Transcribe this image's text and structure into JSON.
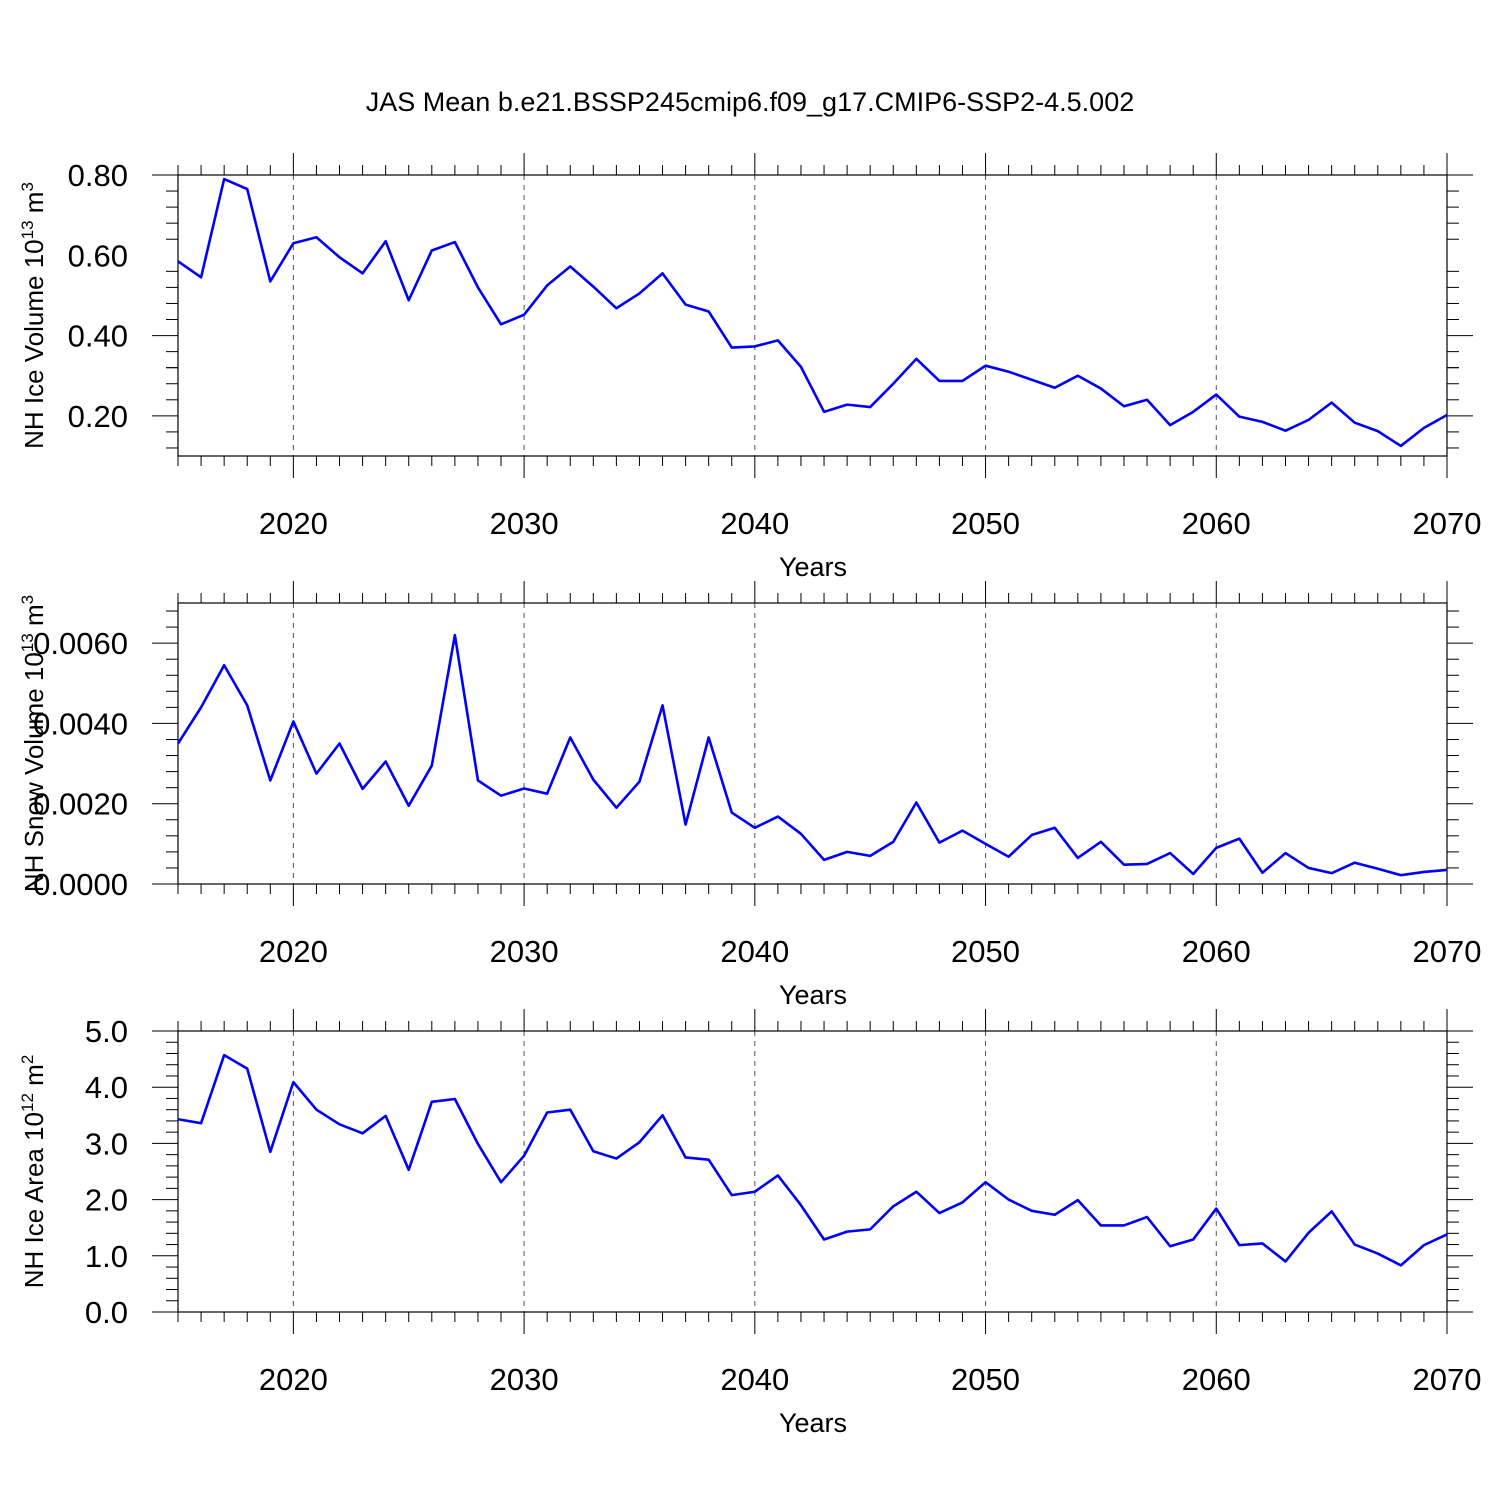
{
  "title": "JAS Mean b.e21.BSSP245cmip6.f09_g17.CMIP6-SSP2-4.5.002",
  "line_color": "#0000ff",
  "chart_data": [
    {
      "type": "line",
      "ylabel": "NH Ice Volume 10",
      "ylabel_sup": "13",
      "ylabel_unit": " m",
      "ylabel_unit_sup": "3",
      "xlabel": "Years",
      "xlim": [
        2015,
        2070
      ],
      "ylim": [
        0.1,
        0.8
      ],
      "x_ticks": [
        2020,
        2030,
        2040,
        2050,
        2060,
        2070
      ],
      "x_tick_labels": [
        "2020",
        "2030",
        "2040",
        "2050",
        "2060",
        "2070"
      ],
      "y_ticks": [
        0.2,
        0.4,
        0.6,
        0.8
      ],
      "y_tick_labels": [
        "0.20",
        "0.40",
        "0.60",
        "0.80"
      ],
      "grid": "vertical dashed at major x ticks",
      "series": [
        {
          "x": [
            2015,
            2016,
            2017,
            2018,
            2019,
            2020,
            2021,
            2022,
            2023,
            2024,
            2025,
            2026,
            2027,
            2028,
            2029,
            2030,
            2031,
            2032,
            2033,
            2034,
            2035,
            2036,
            2037,
            2038,
            2039,
            2040,
            2041,
            2042,
            2043,
            2044,
            2045,
            2046,
            2047,
            2048,
            2049,
            2050,
            2051,
            2052,
            2053,
            2054,
            2055,
            2056,
            2057,
            2058,
            2059,
            2060,
            2061,
            2062,
            2063,
            2064,
            2065,
            2066,
            2067,
            2068,
            2069,
            2070
          ],
          "values": [
            0.585,
            0.545,
            0.79,
            0.765,
            0.535,
            0.63,
            0.645,
            0.595,
            0.555,
            0.635,
            0.488,
            0.612,
            0.633,
            0.52,
            0.428,
            0.452,
            0.525,
            0.572,
            0.522,
            0.468,
            0.505,
            0.555,
            0.477,
            0.46,
            0.37,
            0.373,
            0.388,
            0.322,
            0.21,
            0.228,
            0.222,
            0.28,
            0.342,
            0.287,
            0.287,
            0.325,
            0.31,
            0.29,
            0.27,
            0.3,
            0.268,
            0.224,
            0.24,
            0.177,
            0.21,
            0.253,
            0.198,
            0.185,
            0.163,
            0.19,
            0.233,
            0.183,
            0.162,
            0.125,
            0.17,
            0.202
          ]
        }
      ]
    },
    {
      "type": "line",
      "ylabel": "NH Snow Volume 10",
      "ylabel_sup": "13",
      "ylabel_unit": " m",
      "ylabel_unit_sup": "3",
      "xlabel": "Years",
      "xlim": [
        2015,
        2070
      ],
      "ylim": [
        0.0,
        0.007
      ],
      "x_ticks": [
        2020,
        2030,
        2040,
        2050,
        2060,
        2070
      ],
      "x_tick_labels": [
        "2020",
        "2030",
        "2040",
        "2050",
        "2060",
        "2070"
      ],
      "y_ticks": [
        0.0,
        0.002,
        0.004,
        0.006
      ],
      "y_tick_labels": [
        "0.0000",
        "0.0020",
        "0.0040",
        "0.0060"
      ],
      "grid": "vertical dashed at major x ticks",
      "series": [
        {
          "x": [
            2015,
            2016,
            2017,
            2018,
            2019,
            2020,
            2021,
            2022,
            2023,
            2024,
            2025,
            2026,
            2027,
            2028,
            2029,
            2030,
            2031,
            2032,
            2033,
            2034,
            2035,
            2036,
            2037,
            2038,
            2039,
            2040,
            2041,
            2042,
            2043,
            2044,
            2045,
            2046,
            2047,
            2048,
            2049,
            2050,
            2051,
            2052,
            2053,
            2054,
            2055,
            2056,
            2057,
            2058,
            2059,
            2060,
            2061,
            2062,
            2063,
            2064,
            2065,
            2066,
            2067,
            2068,
            2069,
            2070
          ],
          "values": [
            0.0035,
            0.0044,
            0.00545,
            0.00445,
            0.00258,
            0.00405,
            0.00275,
            0.0035,
            0.00237,
            0.00305,
            0.00195,
            0.00295,
            0.0062,
            0.00258,
            0.0022,
            0.00238,
            0.00225,
            0.00365,
            0.0026,
            0.0019,
            0.00255,
            0.00445,
            0.00148,
            0.00365,
            0.00178,
            0.0014,
            0.00168,
            0.00125,
            0.0006,
            0.0008,
            0.0007,
            0.00105,
            0.00203,
            0.00103,
            0.00133,
            0.001,
            0.00068,
            0.00122,
            0.0014,
            0.00065,
            0.00105,
            0.00048,
            0.0005,
            0.00077,
            0.00025,
            0.0009,
            0.00113,
            0.00028,
            0.00077,
            0.0004,
            0.00027,
            0.00053,
            0.00038,
            0.00022,
            0.0003,
            0.00035
          ]
        }
      ]
    },
    {
      "type": "line",
      "ylabel": "NH Ice Area 10",
      "ylabel_sup": "12",
      "ylabel_unit": " m",
      "ylabel_unit_sup": "2",
      "xlabel": "Years",
      "xlim": [
        2015,
        2070
      ],
      "ylim": [
        0.0,
        5.0
      ],
      "x_ticks": [
        2020,
        2030,
        2040,
        2050,
        2060,
        2070
      ],
      "x_tick_labels": [
        "2020",
        "2030",
        "2040",
        "2050",
        "2060",
        "2070"
      ],
      "y_ticks": [
        0.0,
        1.0,
        2.0,
        3.0,
        4.0,
        5.0
      ],
      "y_tick_labels": [
        "0.0",
        "1.0",
        "2.0",
        "3.0",
        "4.0",
        "5.0"
      ],
      "grid": "vertical dashed at major x ticks",
      "series": [
        {
          "x": [
            2015,
            2016,
            2017,
            2018,
            2019,
            2020,
            2021,
            2022,
            2023,
            2024,
            2025,
            2026,
            2027,
            2028,
            2029,
            2030,
            2031,
            2032,
            2033,
            2034,
            2035,
            2036,
            2037,
            2038,
            2039,
            2040,
            2041,
            2042,
            2043,
            2044,
            2045,
            2046,
            2047,
            2048,
            2049,
            2050,
            2051,
            2052,
            2053,
            2054,
            2055,
            2056,
            2057,
            2058,
            2059,
            2060,
            2061,
            2062,
            2063,
            2064,
            2065,
            2066,
            2067,
            2068,
            2069,
            2070
          ],
          "values": [
            3.43,
            3.36,
            4.57,
            4.33,
            2.85,
            4.09,
            3.6,
            3.34,
            3.18,
            3.49,
            2.53,
            3.74,
            3.79,
            2.99,
            2.31,
            2.78,
            3.55,
            3.6,
            2.86,
            2.73,
            3.02,
            3.5,
            2.75,
            2.71,
            2.08,
            2.14,
            2.43,
            1.9,
            1.29,
            1.43,
            1.47,
            1.88,
            2.14,
            1.76,
            1.95,
            2.31,
            2.0,
            1.8,
            1.73,
            1.99,
            1.54,
            1.54,
            1.69,
            1.17,
            1.29,
            1.84,
            1.19,
            1.22,
            0.9,
            1.41,
            1.79,
            1.2,
            1.04,
            0.83,
            1.19,
            1.38
          ]
        }
      ]
    }
  ]
}
